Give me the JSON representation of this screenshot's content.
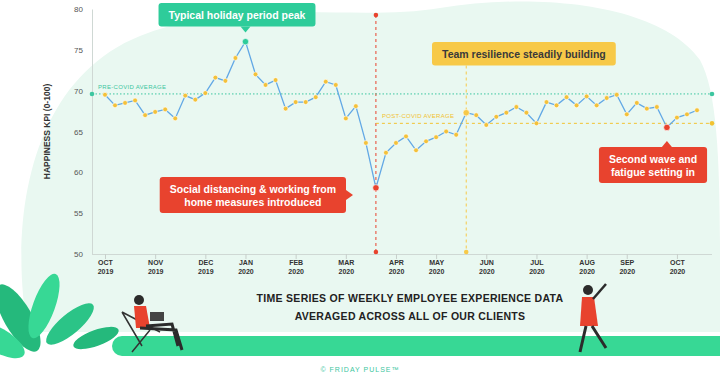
{
  "chart_data": {
    "type": "line",
    "title": "TIME SERIES OF WEEKLY EMPLOYEE EXPERIENCE DATA",
    "subtitle": "AVERAGED ACROSS ALL OF OUR CLIENTS",
    "y_label": "HAPPINESS KPI (0-100)",
    "source": "© FRIDAY PULSE™",
    "categories": [
      "OCT 2019",
      null,
      null,
      null,
      null,
      "NOV 2019",
      null,
      null,
      null,
      null,
      "DEC 2019",
      null,
      null,
      null,
      "JAN 2020",
      null,
      null,
      null,
      null,
      "FEB 2020",
      null,
      null,
      null,
      null,
      "MAR 2020",
      null,
      null,
      null,
      null,
      "APR 2020",
      null,
      null,
      null,
      "MAY 2020",
      null,
      null,
      null,
      null,
      "JUN 2020",
      null,
      null,
      null,
      null,
      "JUL 2020",
      null,
      null,
      null,
      null,
      "AUG 2020",
      null,
      null,
      null,
      "SEP 2020",
      null,
      null,
      null,
      null,
      "OCT 2020",
      null,
      null
    ],
    "values": [
      69.5,
      68.2,
      68.5,
      68.8,
      67.0,
      67.4,
      67.7,
      66.6,
      69.4,
      68.9,
      69.7,
      71.6,
      71.2,
      74.0,
      76.0,
      72.0,
      70.7,
      71.3,
      67.8,
      68.6,
      68.6,
      69.2,
      71.1,
      70.7,
      66.6,
      68.1,
      63.6,
      58.1,
      62.4,
      63.6,
      64.4,
      62.7,
      63.8,
      64.3,
      65.0,
      64.6,
      67.3,
      67.0,
      65.8,
      66.8,
      67.3,
      68.0,
      67.3,
      66.0,
      68.6,
      68.2,
      69.2,
      68.2,
      69.3,
      68.2,
      69.1,
      69.5,
      67.1,
      68.5,
      67.8,
      68.0,
      65.5,
      66.7,
      67.1,
      67.6
    ],
    "color": "#62a8e5",
    "marker": "circle",
    "ylim": [
      50,
      80
    ],
    "yticks": [
      50,
      55,
      60,
      65,
      70,
      75,
      80
    ],
    "grid": false,
    "averages": [
      {
        "label": "PRE-COVID AVERAGE",
        "value": 69.6,
        "color": "#3cc6a0",
        "line_style": "dotted"
      },
      {
        "label": "POST-COVID AVERAGE",
        "value": 66.0,
        "color": "#f2c230",
        "line_style": "dashed"
      }
    ],
    "annotations": [
      {
        "text": [
          "Typical holiday period peak"
        ],
        "point": 14,
        "color": "#2ecc9a"
      },
      {
        "text": [
          "Social distancing & working from",
          "home measures introduced"
        ],
        "point": 27,
        "color": "#e8432e",
        "line_style": "dashed"
      },
      {
        "text": [
          "Team resilience steadily building"
        ],
        "point": 36,
        "color": "#f7c948",
        "line_style": "dashed"
      },
      {
        "text": [
          "Second wave and",
          "fatigue setting in"
        ],
        "point": 56,
        "color": "#e8432e"
      }
    ]
  }
}
